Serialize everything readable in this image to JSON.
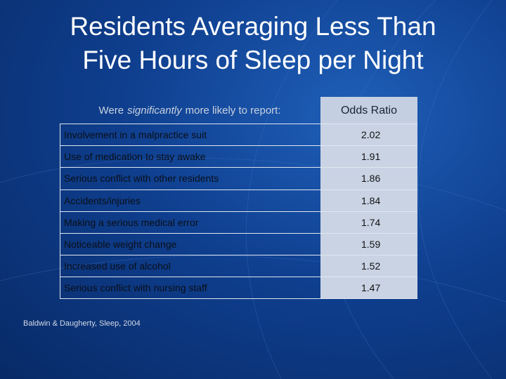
{
  "title": {
    "lines": [
      "Residents Averaging Less Than",
      "Five Hours of Sleep per Night"
    ]
  },
  "table": {
    "header": {
      "parts": [
        "Were",
        "significantly",
        "more likely to report:"
      ],
      "value_header": "Odds Ratio"
    },
    "rows": [
      [
        "Involvement in a malpractice suit",
        2.02
      ],
      [
        "Use of medication to stay awake",
        1.91
      ],
      [
        "Serious conflict with other residents",
        1.86
      ],
      [
        "Accidents/injuries",
        1.84
      ],
      [
        "Making a serious medical error",
        1.74
      ],
      [
        "Noticeable weight change",
        1.59
      ],
      [
        "Increased use of alcohol",
        1.52
      ],
      [
        "Serious conflict with nursing staff",
        1.47
      ]
    ]
  },
  "citation": "Baldwin & Daugherty, Sleep, 2004"
}
